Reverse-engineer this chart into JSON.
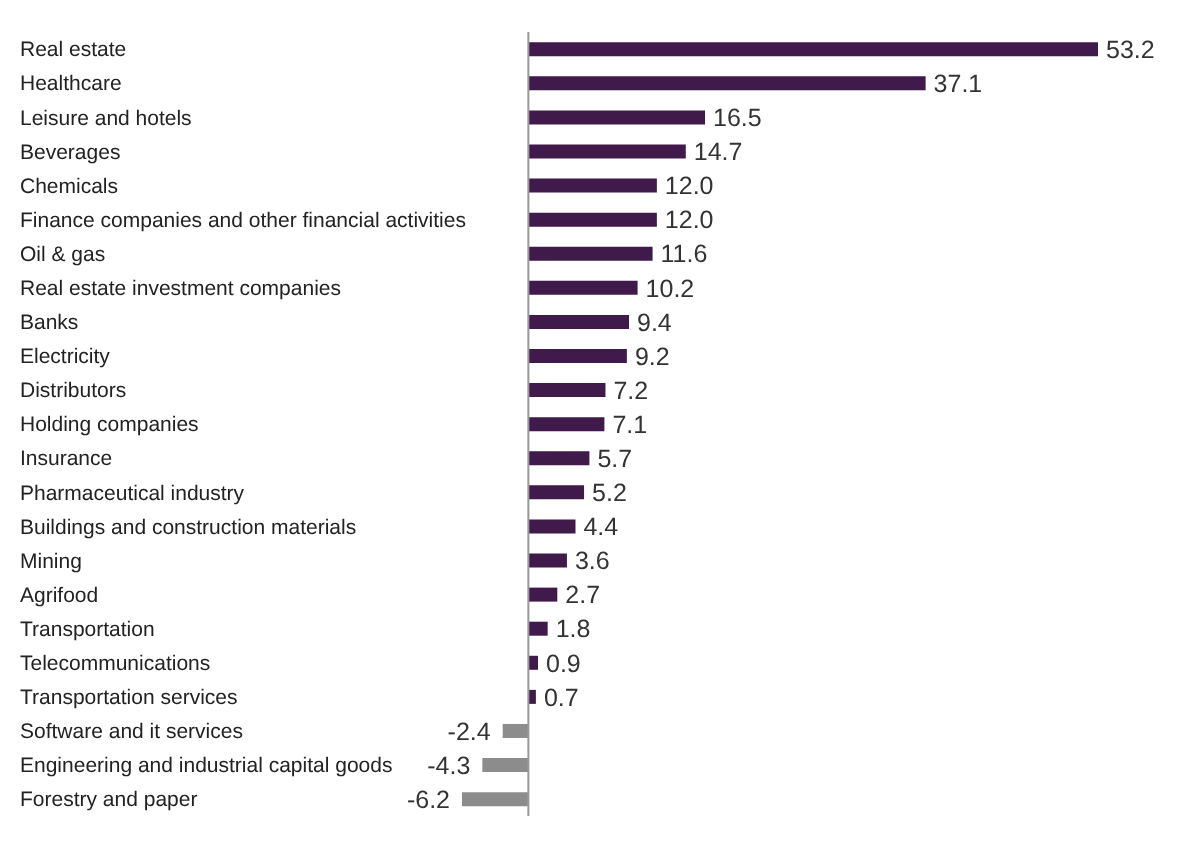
{
  "chart_data": {
    "type": "bar",
    "orientation": "horizontal",
    "value_labels": [
      "53.2",
      "37.1",
      "16.5",
      "14.7",
      "12.0",
      "12.0",
      "11.6",
      "10.2",
      "9.4",
      "9.2",
      "7.2",
      "7.1",
      "5.7",
      "5.2",
      "4.4",
      "3.6",
      "2.7",
      "1.8",
      "0.9",
      "0.7",
      "-2.4",
      "-4.3",
      "-6.2"
    ],
    "categories": [
      "Real estate",
      "Healthcare",
      "Leisure and hotels",
      "Beverages",
      "Chemicals",
      "Finance companies and other financial activities",
      "Oil & gas",
      "Real estate investment companies",
      "Banks",
      "Electricity",
      "Distributors",
      "Holding companies",
      "Insurance",
      "Pharmaceutical industry",
      "Buildings and construction materials",
      "Mining",
      "Agrifood",
      "Transportation",
      "Telecommunications",
      "Transportation services",
      "Software and it services",
      "Engineering and industrial capital goods",
      "Forestry and paper"
    ],
    "values": [
      53.2,
      37.1,
      16.5,
      14.7,
      12.0,
      12.0,
      11.6,
      10.2,
      9.4,
      9.2,
      7.2,
      7.1,
      5.7,
      5.2,
      4.4,
      3.6,
      2.7,
      1.8,
      0.9,
      0.7,
      -2.4,
      -4.3,
      -6.2
    ],
    "colors": [
      "#3f1a4a",
      "#3f1a4a",
      "#3f1a4a",
      "#3f1a4a",
      "#3f1a4a",
      "#3f1a4a",
      "#3f1a4a",
      "#3f1a4a",
      "#3f1a4a",
      "#3f1a4a",
      "#3f1a4a",
      "#3f1a4a",
      "#3f1a4a",
      "#3f1a4a",
      "#3f1a4a",
      "#3f1a4a",
      "#3f1a4a",
      "#3f1a4a",
      "#3f1a4a",
      "#3f1a4a",
      "#8c8c8c",
      "#8c8c8c",
      "#8c8c8c"
    ]
  }
}
